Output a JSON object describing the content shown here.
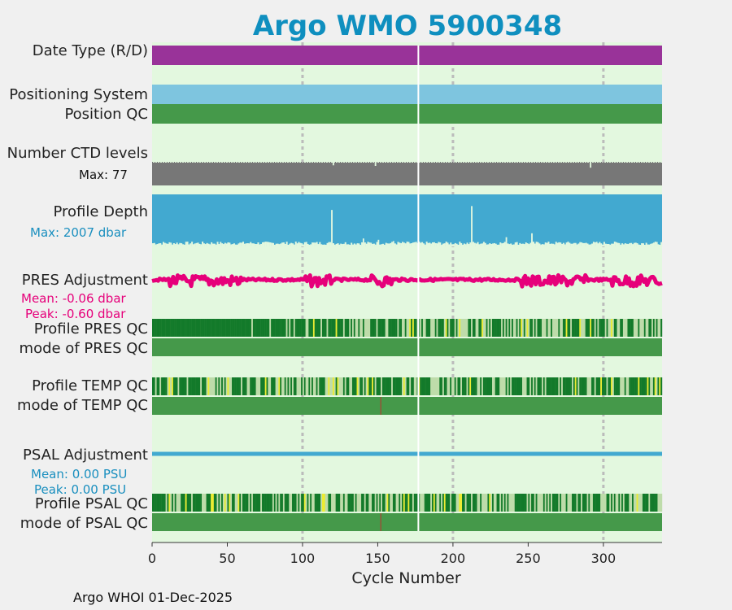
{
  "title": "Argo WMO 5900348",
  "footer": "Argo WHOI 01-Dec-2025",
  "labels": {
    "date_type": "Date Type (R/D)",
    "positioning": "Positioning System",
    "position_qc": "Position QC",
    "ctd_levels": "Number CTD levels",
    "ctd_max": "Max: 77",
    "profile_depth": "Profile Depth",
    "depth_max": "Max: 2007 dbar",
    "pres_adj": "PRES Adjustment",
    "pres_mean": "Mean: -0.06 dbar",
    "pres_peak": "Peak: -0.60 dbar",
    "pres_qc": "Profile PRES QC",
    "pres_mode": "mode of PRES QC",
    "temp_qc": "Profile TEMP QC",
    "temp_mode": "mode of TEMP QC",
    "psal_adj": "PSAL Adjustment",
    "psal_mean": "Mean: 0.00 PSU",
    "psal_peak": "Peak: 0.00 PSU",
    "psal_qc": "Profile PSAL QC",
    "psal_mode": "mode of PSAL QC"
  },
  "colors": {
    "title": "#0f8fbf",
    "panel_bg": "#e3f8df",
    "date_type": "#993399",
    "positioning": "#7ec5df",
    "qc_good": "#45994a",
    "qc_dark": "#137a2a",
    "qc_light": "#bedcaa",
    "qc_yellow": "#ecec33",
    "ctd": "#777777",
    "depth": "#42a9d0",
    "pres_adj": "#e6007a",
    "psal_adj": "#42a9d0",
    "pres_label": "#e6007a",
    "psal_label": "#1a8fbf"
  },
  "chart_data": {
    "type": "timeline",
    "xlabel": "Cycle Number",
    "xlim": [
      0,
      339
    ],
    "xticks": [
      0,
      50,
      100,
      150,
      200,
      250,
      300
    ],
    "grid_x": [
      100,
      200,
      300
    ],
    "gap_cycle": 177,
    "max_cycle": 339,
    "ctd_levels": {
      "max": 77,
      "dips": [
        [
          120,
          68
        ],
        [
          148,
          66
        ],
        [
          291,
          60
        ]
      ]
    },
    "profile_depth": {
      "max": 2007,
      "shallow_cycles": [
        [
          119,
          600
        ],
        [
          140,
          1700
        ],
        [
          150,
          1750
        ],
        [
          160,
          1800
        ],
        [
          212,
          450
        ],
        [
          235,
          1650
        ],
        [
          252,
          1500
        ],
        [
          265,
          1900
        ]
      ]
    },
    "pres_adjustment": {
      "mean": -0.06,
      "peak": -0.6,
      "unit": "dbar"
    },
    "psal_adjustment": {
      "mean": 0.0,
      "peak": 0.0,
      "unit": "PSU"
    },
    "pres_qc": {
      "good_until": 65,
      "mixed_from": 100
    },
    "temp_qc": {
      "mixed_from": 0
    },
    "psal_qc": {
      "mixed_from": 0
    },
    "mode_qc_bad_cycle": 152
  }
}
